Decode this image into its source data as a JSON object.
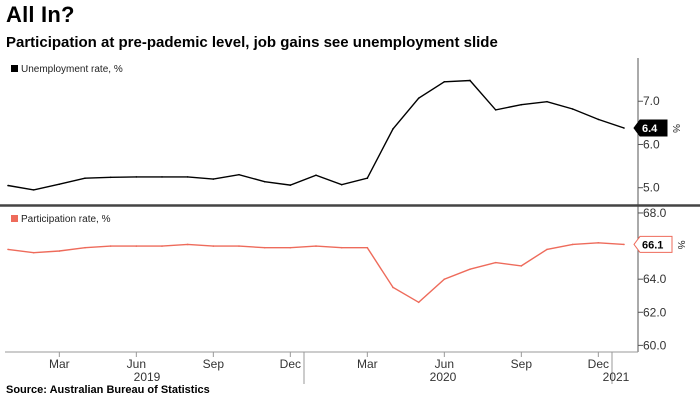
{
  "title": "All In?",
  "subtitle": "Participation at pre-pademic level, job gains see unemployment slide",
  "source": "Source: Australian Bureau of Statistics",
  "chart_data": [
    {
      "type": "line",
      "legend": "Unemployment rate, %",
      "unit": "%",
      "color": "#000000",
      "ylim": [
        4.6,
        8.0
      ],
      "yticks": [
        "5.0",
        "6.0",
        "7.0"
      ],
      "last_value_label": "6.4",
      "x": [
        "2019-01",
        "2019-02",
        "2019-03",
        "2019-04",
        "2019-05",
        "2019-06",
        "2019-07",
        "2019-08",
        "2019-09",
        "2019-10",
        "2019-11",
        "2019-12",
        "2020-01",
        "2020-02",
        "2020-03",
        "2020-04",
        "2020-05",
        "2020-06",
        "2020-07",
        "2020-08",
        "2020-09",
        "2020-10",
        "2020-11",
        "2020-12",
        "2021-01"
      ],
      "values": [
        5.05,
        4.95,
        5.08,
        5.22,
        5.24,
        5.25,
        5.25,
        5.25,
        5.2,
        5.3,
        5.14,
        5.06,
        5.29,
        5.07,
        5.22,
        6.36,
        7.07,
        7.45,
        7.48,
        6.8,
        6.92,
        6.99,
        6.82,
        6.58,
        6.38
      ]
    },
    {
      "type": "line",
      "legend": "Participation rate, %",
      "unit": "%",
      "color": "#ee6b5b",
      "ylim": [
        59.6,
        68.3
      ],
      "yticks": [
        "60.0",
        "62.0",
        "64.0",
        "66.0",
        "68.0"
      ],
      "last_value_label": "66.1",
      "x": [
        "2019-01",
        "2019-02",
        "2019-03",
        "2019-04",
        "2019-05",
        "2019-06",
        "2019-07",
        "2019-08",
        "2019-09",
        "2019-10",
        "2019-11",
        "2019-12",
        "2020-01",
        "2020-02",
        "2020-03",
        "2020-04",
        "2020-05",
        "2020-06",
        "2020-07",
        "2020-08",
        "2020-09",
        "2020-10",
        "2020-11",
        "2020-12",
        "2021-01"
      ],
      "values": [
        65.8,
        65.6,
        65.7,
        65.9,
        66.0,
        66.0,
        66.0,
        66.1,
        66.0,
        66.0,
        65.9,
        65.9,
        66.0,
        65.9,
        65.9,
        63.5,
        62.6,
        64.0,
        64.6,
        65.0,
        64.8,
        65.8,
        66.1,
        66.2,
        66.1
      ]
    }
  ],
  "x_axis": {
    "month_labels": [
      "Mar",
      "Jun",
      "Sep",
      "Dec",
      "Mar",
      "Jun",
      "Sep",
      "Dec"
    ],
    "year_labels": [
      "2019",
      "2020",
      "2021"
    ]
  }
}
